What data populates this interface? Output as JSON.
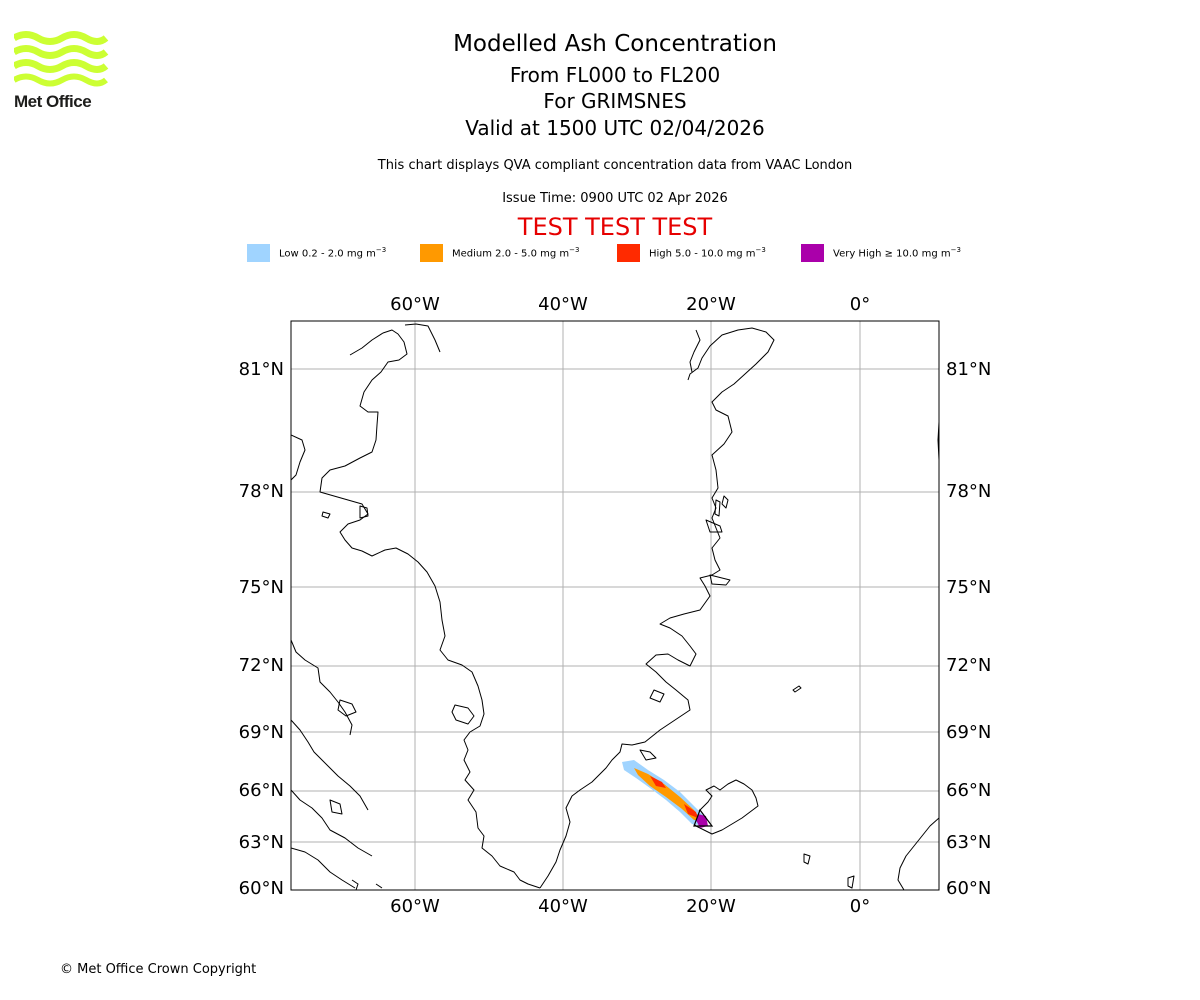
{
  "header": {
    "logo_text": "Met Office",
    "title": "Modelled Ash Concentration",
    "flight_levels": "From FL000 to FL200",
    "volcano": "For GRIMSNES",
    "valid_time": "Valid at 1500 UTC 02/04/2026",
    "subtitle": "This chart displays QVA compliant concentration data from VAAC London",
    "issue_time": "Issue Time: 0900 UTC 02 Apr 2026",
    "test_banner": "TEST TEST TEST"
  },
  "legend": [
    {
      "label": "Low 0.2 - 2.0 mg m",
      "unit_exp": "−3",
      "color": "#a0d4ff"
    },
    {
      "label": "Medium 2.0 - 5.0 mg m",
      "unit_exp": "−3",
      "color": "#ff9900"
    },
    {
      "label": "High 5.0 - 10.0 mg m",
      "unit_exp": "−3",
      "color": "#ff2a00"
    },
    {
      "label": "Very High  ≥  10.0 mg m",
      "unit_exp": "−3",
      "color": "#aa00aa"
    }
  ],
  "map": {
    "lon_labels": [
      "60°W",
      "40°W",
      "20°W",
      "0°"
    ],
    "lat_labels": [
      "81°N",
      "78°N",
      "75°N",
      "72°N",
      "69°N",
      "66°N",
      "63°N",
      "60°N"
    ]
  },
  "footer": {
    "copyright": "© Met Office Crown Copyright"
  },
  "colors": {
    "logo_green": "#ccff33",
    "banner_red": "#e60000",
    "grid": "#b0b0b0"
  }
}
